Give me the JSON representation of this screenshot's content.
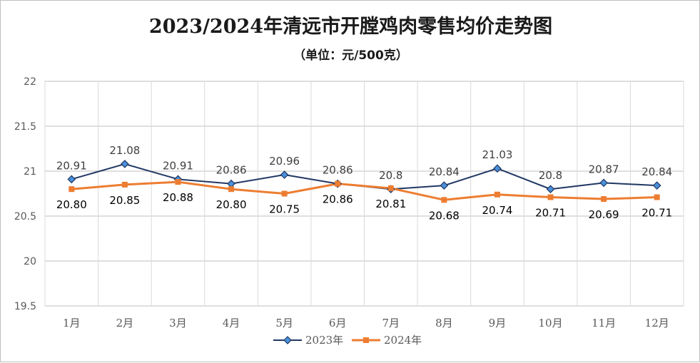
{
  "chart_data": {
    "type": "line",
    "title": "2023/2024年清远市开膛鸡肉零售均价走势图",
    "subtitle": "（单位：元/500克）",
    "categories": [
      "1月",
      "2月",
      "3月",
      "4月",
      "5月",
      "6月",
      "7月",
      "8月",
      "9月",
      "10月",
      "11月",
      "12月"
    ],
    "series": [
      {
        "name": "2023年",
        "color": "#203864",
        "marker": "diamond",
        "values": [
          20.91,
          21.08,
          20.91,
          20.86,
          20.96,
          20.86,
          20.8,
          20.84,
          21.03,
          20.8,
          20.87,
          20.84
        ],
        "labels": [
          "20.91",
          "21.08",
          "20.91",
          "20.86",
          "20.96",
          "20.86",
          "20.8",
          "20.84",
          "21.03",
          "20.8",
          "20.87",
          "20.84"
        ]
      },
      {
        "name": "2024年",
        "color": "#ed7d31",
        "marker": "square",
        "values": [
          20.8,
          20.85,
          20.88,
          20.8,
          20.75,
          20.86,
          20.81,
          20.68,
          20.74,
          20.71,
          20.69,
          20.71
        ],
        "labels": [
          "20.80",
          "20.85",
          "20.88",
          "20.80",
          "20.75",
          "20.86",
          "20.81",
          "20.68",
          "20.74",
          "20.71",
          "20.69",
          "20.71"
        ]
      }
    ],
    "ylim": [
      19.5,
      22
    ],
    "yticks": [
      "22",
      "21.5",
      "21",
      "20.5",
      "20",
      "19.5"
    ],
    "ytick_values": [
      22,
      21.5,
      21,
      20.5,
      20,
      19.5
    ],
    "grid": true,
    "legend_position": "bottom"
  }
}
